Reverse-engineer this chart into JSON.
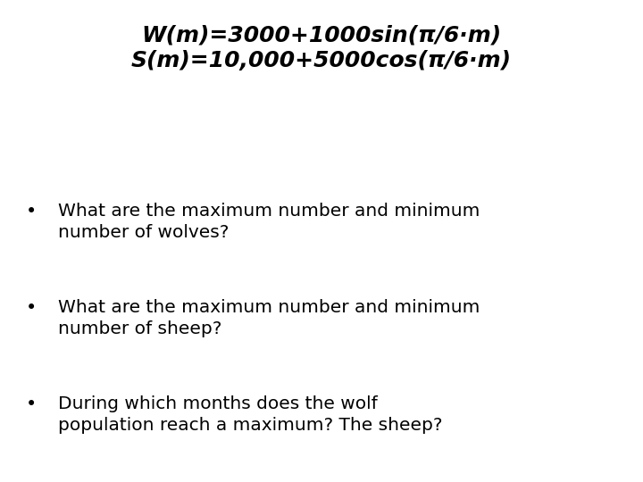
{
  "title_line1": "W(m)=3000+1000sin(π/6·m)",
  "title_line2": "S(m)=10,000+5000cos(π/6·m)",
  "bullet1_line1": "What are the maximum number and minimum",
  "bullet1_line2": "number of wolves?",
  "bullet2_line1": "What are the maximum number and minimum",
  "bullet2_line2": "number of sheep?",
  "bullet3_line1": "During which months does the wolf",
  "bullet3_line2": "population reach a maximum? The sheep?",
  "background_color": "#ffffff",
  "title_color": "#000000",
  "text_color": "#000000",
  "title_fontsize": 18,
  "bullet_fontsize": 14.5
}
